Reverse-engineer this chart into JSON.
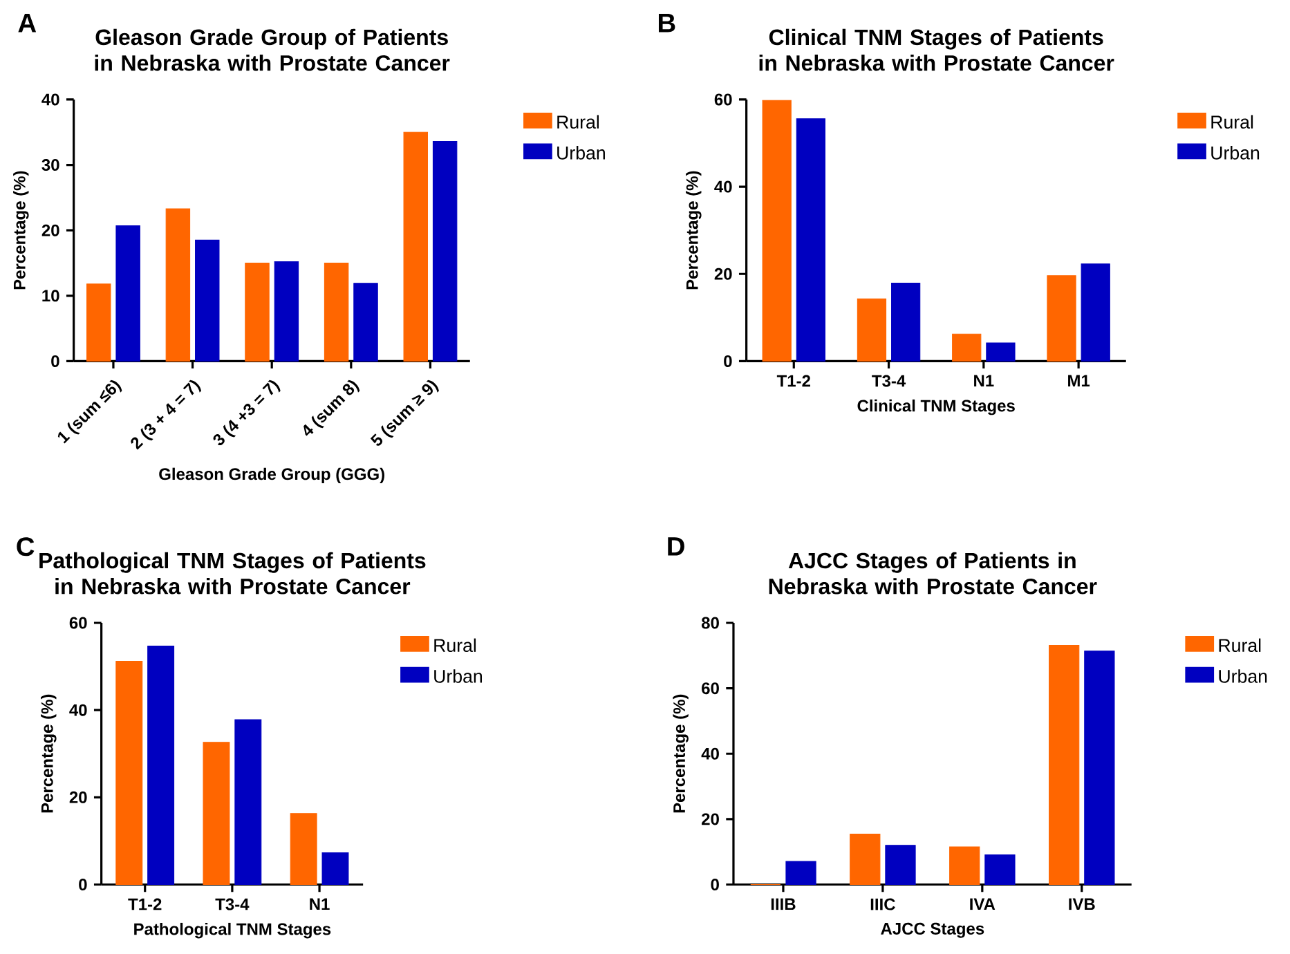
{
  "chart_data": [
    {
      "type": "bar",
      "title": "Gleason Grade Group of Patients in Nebraska with Prostate Cancer",
      "xlabel": "Gleason Grade Group (GGG)",
      "ylabel": "Percentage (%)",
      "annotations": [
        "A"
      ],
      "categories": [
        "1 (sum ≤6)",
        "2 (3 + 4 = 7)",
        "3 (4 +3 = 7)",
        "4 (sum 8)",
        "5 (sum ≥ 9)"
      ],
      "series": [
        {
          "name": "Rural",
          "color": "#ff6600",
          "values": [
            11.8,
            23.3,
            15.0,
            15.0,
            35.0
          ]
        },
        {
          "name": "Urban",
          "color": "#0000c0",
          "values": [
            20.7,
            18.5,
            15.2,
            11.9,
            33.6
          ]
        }
      ],
      "ylim": [
        0,
        40
      ],
      "yticks": [
        0,
        10,
        20,
        30,
        40
      ],
      "legend": "right"
    },
    {
      "type": "bar",
      "title": "Clinical TNM Stages of Patients in Nebraska with Prostate Cancer",
      "xlabel": "Clinical TNM Stages",
      "ylabel": "Percentage (%)",
      "annotations": [
        "B"
      ],
      "categories": [
        "T1-2",
        "T3-4",
        "N1",
        "M1"
      ],
      "series": [
        {
          "name": "Rural",
          "color": "#ff6600",
          "values": [
            59.8,
            14.3,
            6.2,
            19.6
          ]
        },
        {
          "name": "Urban",
          "color": "#0000c0",
          "values": [
            55.6,
            17.9,
            4.2,
            22.3
          ]
        }
      ],
      "ylim": [
        0,
        60
      ],
      "yticks": [
        0,
        20,
        40,
        60
      ],
      "legend": "right"
    },
    {
      "type": "bar",
      "title": "Pathological TNM Stages of Patients in Nebraska with Prostate Cancer",
      "xlabel": "Pathological TNM Stages",
      "ylabel": "Percentage (%)",
      "annotations": [
        "C"
      ],
      "categories": [
        "T1-2",
        "T3-4",
        "N1"
      ],
      "series": [
        {
          "name": "Rural",
          "color": "#ff6600",
          "values": [
            51.2,
            32.6,
            16.3
          ]
        },
        {
          "name": "Urban",
          "color": "#0000c0",
          "values": [
            54.7,
            37.8,
            7.3
          ]
        }
      ],
      "ylim": [
        0,
        60
      ],
      "yticks": [
        0,
        20,
        40,
        60
      ],
      "legend": "right"
    },
    {
      "type": "bar",
      "title": "AJCC Stages of Patients in Nebraska with Prostate Cancer",
      "xlabel": "AJCC Stages",
      "ylabel": "Percentage (%)",
      "annotations": [
        "D"
      ],
      "categories": [
        "IIIB",
        "IIIC",
        "IVA",
        "IVB"
      ],
      "series": [
        {
          "name": "Rural",
          "color": "#ff6600",
          "values": [
            0,
            15.4,
            11.5,
            73.1
          ]
        },
        {
          "name": "Urban",
          "color": "#0000c0",
          "values": [
            7.1,
            12.0,
            9.1,
            71.4
          ]
        }
      ],
      "ylim": [
        0,
        80
      ],
      "yticks": [
        0,
        20,
        40,
        60,
        80
      ],
      "legend": "right"
    }
  ]
}
